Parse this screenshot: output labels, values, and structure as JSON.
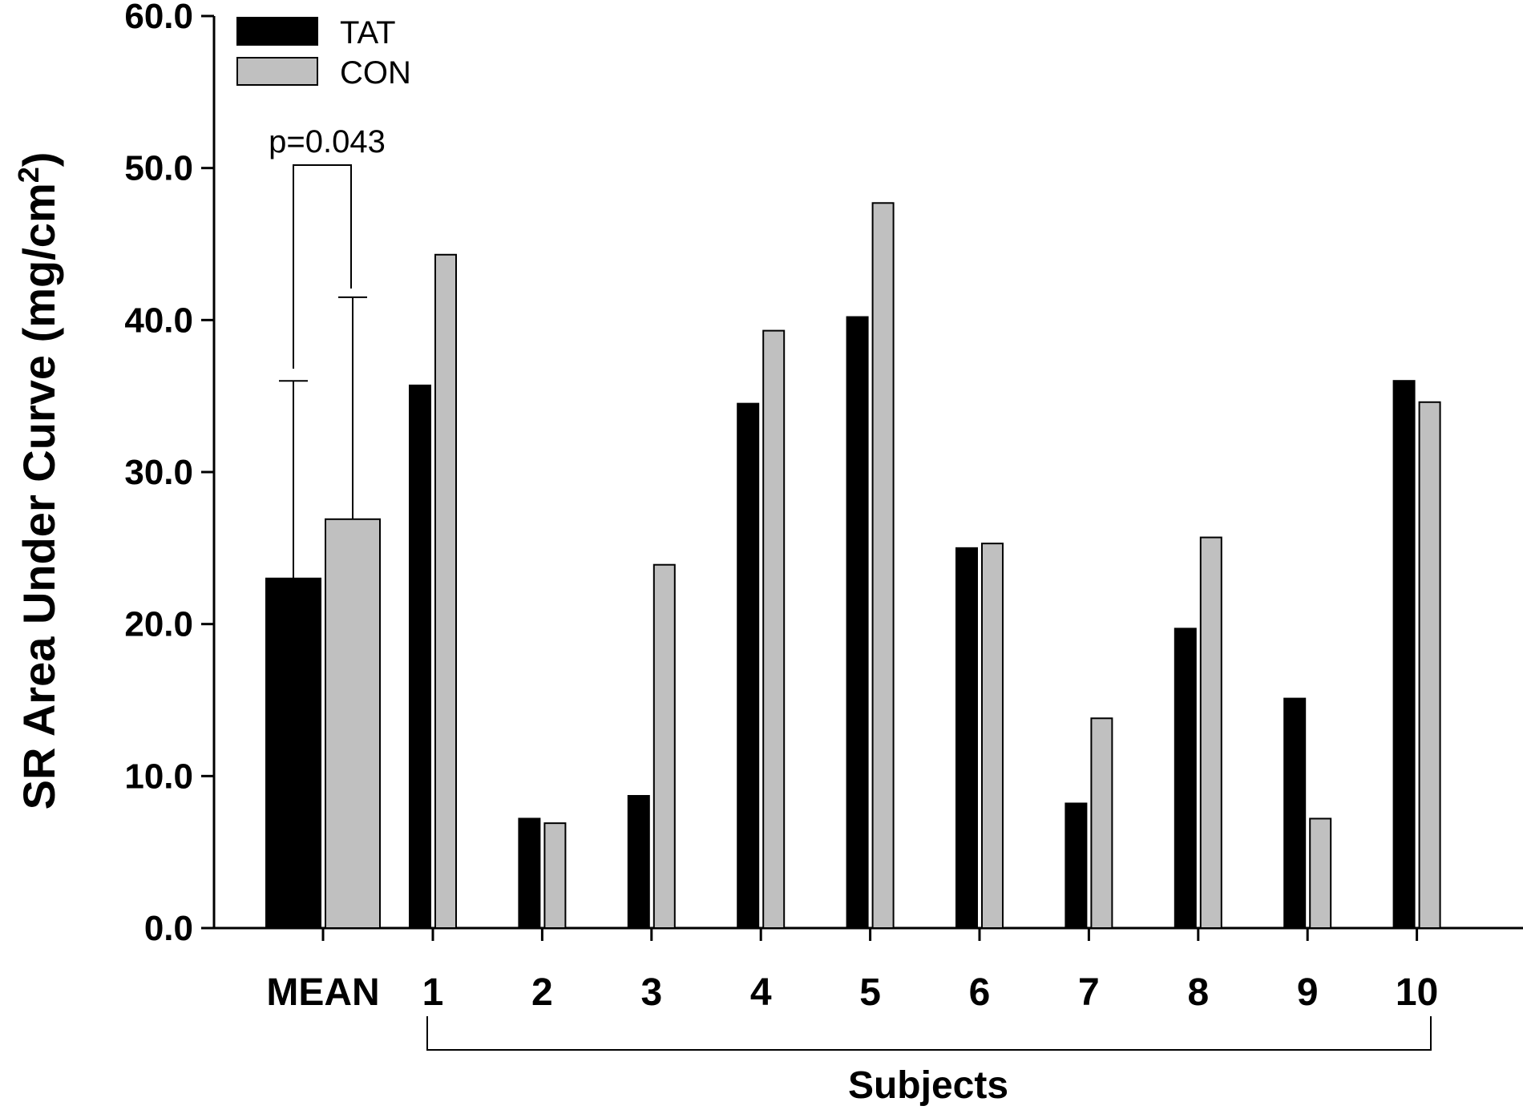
{
  "chart_data": {
    "type": "bar",
    "ylabel": "SR Area Under Curve (mg/cm",
    "ylabel_superscript": "2",
    "ylabel_close": ")",
    "xlabel": "Subjects",
    "ylim": [
      0,
      60
    ],
    "yticks": [
      "0.0",
      "10.0",
      "20.0",
      "30.0",
      "40.0",
      "50.0",
      "60.0"
    ],
    "categories": [
      "MEAN",
      "1",
      "2",
      "3",
      "4",
      "5",
      "6",
      "7",
      "8",
      "9",
      "10"
    ],
    "series": [
      {
        "name": "TAT",
        "color": "#000000",
        "values": [
          23.0,
          35.7,
          7.2,
          8.7,
          34.5,
          40.2,
          25.0,
          8.2,
          19.7,
          15.1,
          36.0
        ],
        "error": [
          13.0,
          null,
          null,
          null,
          null,
          null,
          null,
          null,
          null,
          null,
          null
        ]
      },
      {
        "name": "CON",
        "color": "#c0c0c0",
        "values": [
          26.9,
          44.3,
          6.9,
          23.9,
          39.3,
          47.7,
          25.3,
          13.8,
          25.7,
          7.2,
          34.6
        ],
        "error": [
          14.6,
          null,
          null,
          null,
          null,
          null,
          null,
          null,
          null,
          null,
          null
        ]
      }
    ],
    "annotation": "p=0.043",
    "legend_position": "top-left",
    "grid": false
  }
}
